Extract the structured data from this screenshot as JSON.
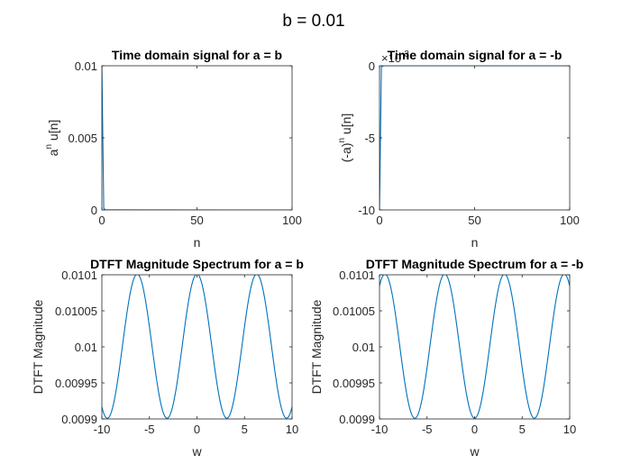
{
  "figure": {
    "suptitle": "b = 0.01"
  },
  "chart_data": [
    {
      "type": "line",
      "title": "Time domain signal for a = b",
      "xlabel": "n",
      "ylabel_base": "a",
      "ylabel_sup": "n",
      "ylabel_rest": " u[n]",
      "xlim": [
        0,
        100
      ],
      "ylim": [
        0,
        0.01
      ],
      "xticks": [
        0,
        50,
        100
      ],
      "xtick_labels": [
        "0",
        "50",
        "100"
      ],
      "yticks": [
        0,
        0.005,
        0.01
      ],
      "ytick_labels": [
        "0",
        "0.005",
        "0.01"
      ],
      "exponent_label": "",
      "series": [
        {
          "x": [
            0,
            1,
            2,
            100
          ],
          "y": [
            0.01,
            0.0001,
            1e-06,
            0
          ]
        }
      ],
      "color": "#0072BD"
    },
    {
      "type": "line",
      "title": "Time domain signal for a = -b",
      "xlabel": "n",
      "ylabel_base": "(-a)",
      "ylabel_sup": "n",
      "ylabel_rest": " u[n]",
      "xlim": [
        0,
        100
      ],
      "ylim": [
        -10,
        0
      ],
      "xticks": [
        0,
        50,
        100
      ],
      "xtick_labels": [
        "0",
        "50",
        "100"
      ],
      "yticks": [
        -10,
        -5,
        0
      ],
      "ytick_labels": [
        "-10",
        "-5",
        "0"
      ],
      "exponent_label": "×10",
      "exponent_power": "-3",
      "series": [
        {
          "x": [
            0,
            1,
            2,
            100
          ],
          "y": [
            -10,
            -0.1,
            0,
            0
          ]
        }
      ],
      "color": "#0072BD"
    },
    {
      "type": "line",
      "title": "DTFT Magnitude Spectrum for a = b",
      "xlabel": "w",
      "ylabel_base": "DTFT Magnitude",
      "ylabel_sup": "",
      "ylabel_rest": "",
      "xlim": [
        -10,
        10
      ],
      "ylim": [
        0.0099,
        0.0101
      ],
      "xticks": [
        -10,
        -5,
        0,
        5,
        10
      ],
      "xtick_labels": [
        "-10",
        "-5",
        "0",
        "5",
        "10"
      ],
      "yticks": [
        0.0099,
        0.00995,
        0.01,
        0.01005,
        0.0101
      ],
      "ytick_labels": [
        "0.0099",
        "0.00995",
        "0.01",
        "0.01005",
        "0.0101"
      ],
      "exponent_label": "",
      "function": "0.01/|1 - 0.01 e^{-jw}|",
      "a": 0.01,
      "color": "#0072BD"
    },
    {
      "type": "line",
      "title": "DTFT Magnitude Spectrum for a = -b",
      "xlabel": "w",
      "ylabel_base": "DTFT Magnitude",
      "ylabel_sup": "",
      "ylabel_rest": "",
      "xlim": [
        -10,
        10
      ],
      "ylim": [
        0.0099,
        0.0101
      ],
      "xticks": [
        -10,
        -5,
        0,
        5,
        10
      ],
      "xtick_labels": [
        "-10",
        "-5",
        "0",
        "5",
        "10"
      ],
      "yticks": [
        0.0099,
        0.00995,
        0.01,
        0.01005,
        0.0101
      ],
      "ytick_labels": [
        "0.0099",
        "0.00995",
        "0.01",
        "0.01005",
        "0.0101"
      ],
      "exponent_label": "",
      "function": "0.01/|1 + 0.01 e^{-jw}|",
      "a": -0.01,
      "color": "#0072BD"
    }
  ]
}
